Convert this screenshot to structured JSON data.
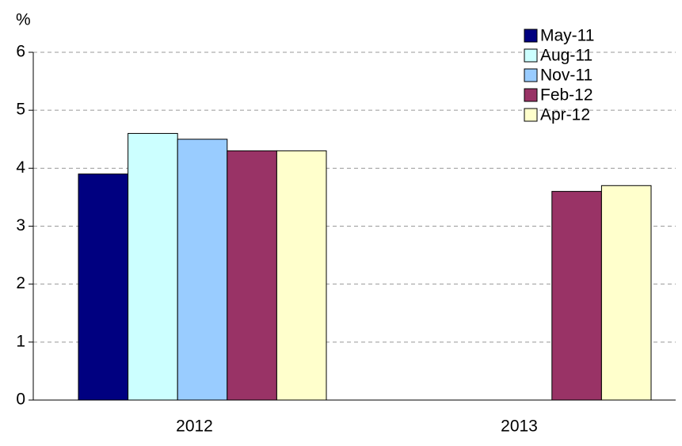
{
  "chart_data": {
    "type": "bar",
    "y_label": "%",
    "categories": [
      "2012",
      "2013"
    ],
    "series": [
      {
        "name": "May-11",
        "color": "#000080",
        "values": [
          3.9,
          null
        ]
      },
      {
        "name": "Aug-11",
        "color": "#ccffff",
        "values": [
          4.6,
          null
        ]
      },
      {
        "name": "Nov-11",
        "color": "#99ccff",
        "values": [
          4.5,
          null
        ]
      },
      {
        "name": "Feb-12",
        "color": "#993366",
        "values": [
          4.3,
          3.6
        ]
      },
      {
        "name": "Apr-12",
        "color": "#ffffcc",
        "values": [
          4.3,
          3.7
        ]
      }
    ],
    "ylim": [
      0,
      6
    ],
    "yticks": [
      0,
      1,
      2,
      3,
      4,
      5,
      6
    ],
    "grid": true,
    "legend": "upper right"
  }
}
